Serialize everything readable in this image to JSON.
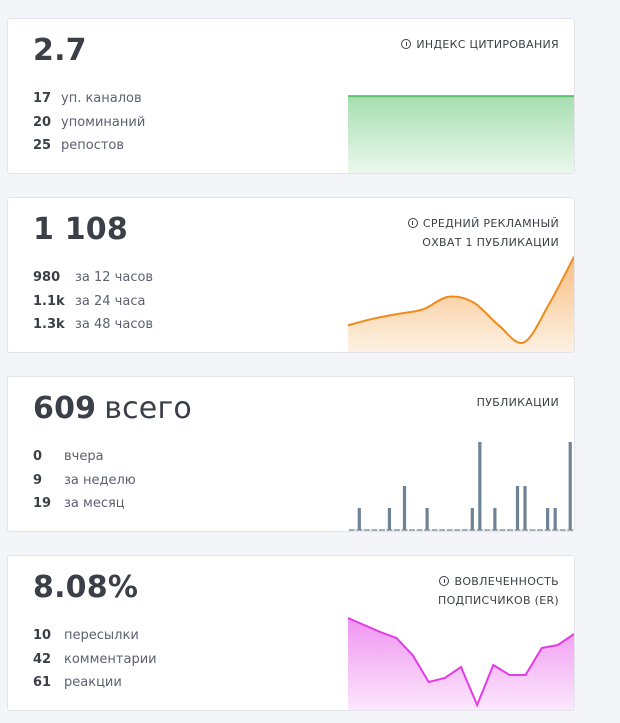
{
  "cards": [
    {
      "id": "citation",
      "value": "2.7",
      "title_lines": [
        "ИНДЕКС ЦИТИРОВАНИЯ"
      ],
      "stats": [
        {
          "num": "17",
          "label": "уп. каналов"
        },
        {
          "num": "20",
          "label": "упоминаний"
        },
        {
          "num": "25",
          "label": "репостов"
        }
      ],
      "color": "#5ec36f"
    },
    {
      "id": "reach",
      "value": "1 108",
      "title_lines": [
        "СРЕДНИЙ РЕКЛАМНЫЙ",
        "ОХВАТ 1 ПУБЛИКАЦИИ"
      ],
      "stats": [
        {
          "num": "980",
          "label": "за 12 часов"
        },
        {
          "num": "1.1k",
          "label": "за 24 часа"
        },
        {
          "num": "1.3k",
          "label": "за 48 часов"
        }
      ],
      "color": "#f28a1a"
    },
    {
      "id": "publications",
      "value": "609",
      "value_suffix": "всего",
      "title_lines": [
        "ПУБЛИКАЦИИ"
      ],
      "stats": [
        {
          "num": "0",
          "label": "вчера"
        },
        {
          "num": "9",
          "label": "за неделю"
        },
        {
          "num": "19",
          "label": "за месяц"
        }
      ],
      "color": "#6f8396"
    },
    {
      "id": "er",
      "value": "8.08%",
      "title_lines": [
        "ВОВЛЕЧЕННОСТЬ",
        "ПОДПИСЧИКОВ (ER)"
      ],
      "stats": [
        {
          "num": "10",
          "label": "пересылки"
        },
        {
          "num": "42",
          "label": "комментарии"
        },
        {
          "num": "61",
          "label": "реакции"
        }
      ],
      "color": "#e23ce6"
    }
  ],
  "icons": {
    "info": "info-circle-icon"
  },
  "chart_data": [
    {
      "type": "area",
      "series": [
        {
          "values": [
            1,
            1,
            1,
            1,
            1
          ]
        }
      ],
      "ylim": [
        0,
        1.3
      ]
    },
    {
      "type": "area",
      "series": [
        {
          "values": [
            0.28,
            0.35,
            0.4,
            0.45,
            0.58,
            0.52,
            0.28,
            0.1,
            0.5,
            1.0
          ]
        }
      ],
      "ylim": [
        0,
        1.05
      ]
    },
    {
      "type": "bar",
      "values": [
        0,
        1,
        0,
        0,
        0,
        1,
        0,
        2,
        0,
        0,
        1,
        0,
        0,
        0,
        0,
        0,
        1,
        4,
        0,
        1,
        0,
        0,
        2,
        2,
        0,
        0,
        1,
        1,
        0,
        4
      ],
      "ylim": [
        0,
        4
      ]
    },
    {
      "type": "area",
      "series": [
        {
          "values": [
            0.92,
            0.85,
            0.78,
            0.72,
            0.55,
            0.28,
            0.32,
            0.43,
            0.05,
            0.45,
            0.35,
            0.35,
            0.62,
            0.65,
            0.76
          ]
        }
      ],
      "ylim": [
        0,
        1
      ]
    }
  ]
}
